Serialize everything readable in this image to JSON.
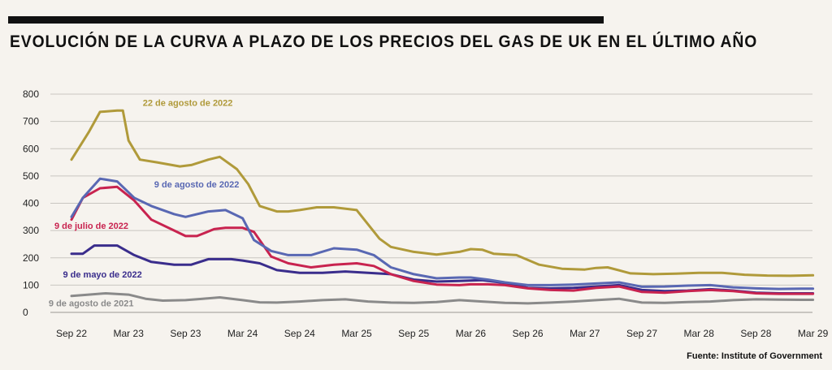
{
  "title": "EVOLUCIÓN DE LA CURVA A PLAZO DE LOS PRECIOS DEL GAS DE UK EN EL ÚLTIMO AÑO",
  "source": "Fuente: Institute of Government",
  "chart_data": {
    "type": "line",
    "title": "EVOLUCIÓN DE LA CURVA A PLAZO DE LOS PRECIOS DEL GAS DE UK EN EL ÚLTIMO AÑO",
    "xlabel": "",
    "ylabel": "",
    "x_ticks": [
      "Sep 22",
      "Mar 23",
      "Sep 23",
      "Mar 24",
      "Sep 24",
      "Mar 25",
      "Sep 25",
      "Mar 26",
      "Sep 26",
      "Mar 27",
      "Sep 27",
      "Mar 28",
      "Sep 28",
      "Mar 29"
    ],
    "ylim": [
      0,
      800
    ],
    "y_ticks": [
      0,
      100,
      200,
      300,
      400,
      500,
      600,
      700,
      800
    ],
    "grid": true,
    "legend": "inline labels",
    "series": [
      {
        "name": "22 de agosto de 2022",
        "color": "#b09a3a",
        "x": [
          0,
          0.3,
          0.5,
          0.8,
          0.9,
          1.0,
          1.2,
          1.5,
          1.9,
          2.1,
          2.4,
          2.6,
          2.9,
          3.1,
          3.3,
          3.6,
          3.8,
          4.0,
          4.3,
          4.6,
          5.0,
          5.4,
          5.6,
          6.0,
          6.4,
          6.8,
          7.0,
          7.2,
          7.4,
          7.8,
          8.2,
          8.6,
          9.0,
          9.2,
          9.4,
          9.8,
          10.2,
          10.6,
          11.0,
          11.4,
          11.8,
          12.2,
          12.6,
          13.0
        ],
        "y": [
          560,
          660,
          735,
          740,
          740,
          630,
          560,
          550,
          535,
          540,
          560,
          570,
          525,
          470,
          390,
          370,
          370,
          375,
          385,
          385,
          375,
          270,
          240,
          222,
          212,
          222,
          232,
          230,
          215,
          210,
          175,
          160,
          157,
          163,
          165,
          143,
          140,
          142,
          145,
          145,
          138,
          135,
          134,
          136
        ]
      },
      {
        "name": "9 de agosto de 2022",
        "color": "#5968b3",
        "x": [
          0,
          0.2,
          0.5,
          0.8,
          1.1,
          1.4,
          1.8,
          2.0,
          2.4,
          2.7,
          3.0,
          3.2,
          3.5,
          3.8,
          4.2,
          4.6,
          5.0,
          5.3,
          5.6,
          6.0,
          6.4,
          6.8,
          7.0,
          7.3,
          7.6,
          8.0,
          8.4,
          8.8,
          9.2,
          9.6,
          10.0,
          10.4,
          10.8,
          11.2,
          11.6,
          12.0,
          12.4,
          12.8,
          13.0
        ],
        "y": [
          350,
          420,
          490,
          480,
          420,
          390,
          360,
          350,
          370,
          375,
          345,
          265,
          225,
          210,
          210,
          235,
          230,
          210,
          165,
          140,
          125,
          128,
          128,
          120,
          110,
          100,
          100,
          102,
          106,
          110,
          94,
          95,
          98,
          100,
          92,
          88,
          86,
          87,
          87
        ]
      },
      {
        "name": "9 de julio de 2022",
        "color": "#c8234f",
        "x": [
          0,
          0.2,
          0.5,
          0.8,
          1.1,
          1.4,
          1.8,
          2.0,
          2.2,
          2.5,
          2.7,
          3.0,
          3.2,
          3.5,
          3.8,
          4.2,
          4.6,
          5.0,
          5.3,
          5.6,
          6.0,
          6.4,
          6.8,
          7.0,
          7.3,
          7.6,
          8.0,
          8.4,
          8.8,
          9.2,
          9.6,
          10.0,
          10.4,
          10.8,
          11.2,
          11.6,
          12.0,
          12.4,
          12.8,
          13.0
        ],
        "y": [
          340,
          420,
          455,
          460,
          410,
          340,
          300,
          280,
          280,
          305,
          310,
          310,
          295,
          205,
          180,
          165,
          175,
          180,
          170,
          140,
          115,
          102,
          100,
          103,
          103,
          100,
          88,
          82,
          80,
          90,
          95,
          75,
          72,
          78,
          82,
          78,
          70,
          68,
          68,
          68
        ]
      },
      {
        "name": "9 de mayo de 2022",
        "color": "#3a2d8c",
        "x": [
          0,
          0.2,
          0.4,
          0.8,
          1.1,
          1.4,
          1.8,
          2.1,
          2.4,
          2.8,
          3.0,
          3.3,
          3.6,
          4.0,
          4.4,
          4.8,
          5.2,
          5.6,
          6.0,
          6.4,
          6.8,
          7.2,
          7.6,
          8.0,
          8.4,
          8.8,
          9.2,
          9.6,
          10.0,
          10.4,
          10.8,
          11.2,
          11.6,
          12.0,
          12.4,
          12.8,
          13.0
        ],
        "y": [
          215,
          215,
          245,
          245,
          210,
          185,
          175,
          175,
          195,
          195,
          190,
          180,
          155,
          145,
          145,
          150,
          145,
          140,
          120,
          113,
          115,
          118,
          108,
          90,
          88,
          90,
          95,
          100,
          82,
          78,
          80,
          85,
          80,
          72,
          70,
          70,
          70
        ]
      },
      {
        "name": "9 de agosto de 2021",
        "color": "#8a8a8a",
        "x": [
          0,
          0.3,
          0.6,
          1.0,
          1.3,
          1.6,
          2.0,
          2.3,
          2.6,
          3.0,
          3.3,
          3.6,
          4.0,
          4.4,
          4.8,
          5.2,
          5.6,
          6.0,
          6.4,
          6.8,
          7.2,
          7.6,
          8.0,
          8.4,
          8.8,
          9.2,
          9.6,
          10.0,
          10.4,
          10.8,
          11.2,
          11.6,
          12.0,
          12.4,
          12.8,
          13.0
        ],
        "y": [
          60,
          65,
          70,
          65,
          50,
          43,
          45,
          50,
          55,
          45,
          37,
          36,
          40,
          45,
          48,
          40,
          36,
          35,
          38,
          45,
          40,
          35,
          33,
          36,
          40,
          45,
          50,
          36,
          35,
          38,
          40,
          45,
          48,
          47,
          46,
          46
        ]
      }
    ],
    "labels": [
      {
        "series": 0,
        "text": "22 de agosto de 2022",
        "x": 1.25,
        "y": 757,
        "anchor": "start"
      },
      {
        "series": 1,
        "text": "9 de agosto de 2022",
        "x": 1.45,
        "y": 458,
        "anchor": "start"
      },
      {
        "series": 2,
        "text": "9 de julio de 2022",
        "x": -0.3,
        "y": 306,
        "anchor": "start"
      },
      {
        "series": 3,
        "text": "9 de mayo de 2022",
        "x": -0.15,
        "y": 128,
        "anchor": "start"
      },
      {
        "series": 4,
        "text": "9 de agosto de 2021",
        "x": -0.4,
        "y": 22,
        "anchor": "start"
      }
    ]
  }
}
